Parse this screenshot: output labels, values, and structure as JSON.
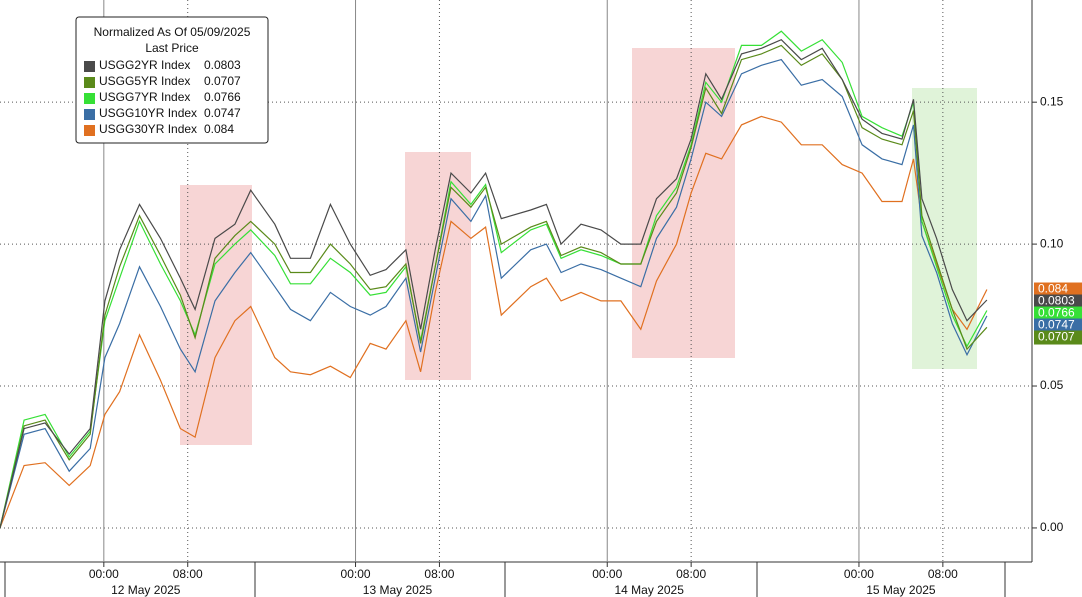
{
  "chart_data": {
    "type": "line",
    "legend": {
      "title": "Normalized As Of 05/09/2025",
      "subtitle": "Last Price"
    },
    "x": [
      -9.9,
      -7.6,
      -5.6,
      -3.3,
      -1.3,
      0.1,
      1.5,
      3.4,
      5.4,
      7.3,
      8.7,
      10.6,
      12.5,
      14.0,
      16.3,
      17.8,
      19.7,
      21.6,
      23.5,
      25.4,
      26.9,
      28.8,
      30.2,
      31.6,
      33.1,
      35.0,
      36.4,
      37.9,
      40.7,
      42.2,
      43.6,
      45.5,
      47.4,
      49.3,
      51.2,
      52.7,
      54.6,
      56.0,
      57.4,
      58.9,
      60.8,
      62.7,
      64.6,
      66.5,
      68.5,
      70.4,
      72.3,
      74.2,
      76.1,
      77.2,
      78.0,
      79.4,
      80.9,
      82.3,
      84.2
    ],
    "series": [
      {
        "name": "USGG2YR Index",
        "color": "#4a4a4a",
        "values": [
          0,
          0.035,
          0.037,
          0.026,
          0.035,
          0.08,
          0.098,
          0.114,
          0.102,
          0.088,
          0.077,
          0.102,
          0.107,
          0.119,
          0.107,
          0.095,
          0.095,
          0.114,
          0.1,
          0.089,
          0.091,
          0.098,
          0.07,
          0.098,
          0.125,
          0.118,
          0.125,
          0.109,
          0.112,
          0.114,
          0.1,
          0.107,
          0.105,
          0.1,
          0.1,
          0.116,
          0.123,
          0.137,
          0.16,
          0.151,
          0.167,
          0.169,
          0.172,
          0.165,
          0.169,
          0.158,
          0.144,
          0.139,
          0.137,
          0.151,
          0.116,
          0.102,
          0.084,
          0.073,
          0.0803
        ]
      },
      {
        "name": "USGG5YR Index",
        "color": "#5a8a1a",
        "values": [
          0,
          0.036,
          0.038,
          0.024,
          0.033,
          0.075,
          0.092,
          0.11,
          0.096,
          0.082,
          0.067,
          0.095,
          0.103,
          0.108,
          0.1,
          0.09,
          0.09,
          0.1,
          0.093,
          0.084,
          0.085,
          0.093,
          0.065,
          0.092,
          0.12,
          0.113,
          0.12,
          0.1,
          0.106,
          0.108,
          0.096,
          0.099,
          0.097,
          0.093,
          0.093,
          0.108,
          0.118,
          0.134,
          0.155,
          0.146,
          0.165,
          0.167,
          0.17,
          0.163,
          0.167,
          0.158,
          0.141,
          0.137,
          0.135,
          0.147,
          0.11,
          0.094,
          0.077,
          0.063,
          0.0707
        ]
      },
      {
        "name": "USGG7YR Index",
        "color": "#36e036",
        "values": [
          0,
          0.038,
          0.04,
          0.025,
          0.034,
          0.073,
          0.088,
          0.108,
          0.093,
          0.08,
          0.068,
          0.093,
          0.1,
          0.105,
          0.096,
          0.086,
          0.086,
          0.095,
          0.09,
          0.082,
          0.083,
          0.092,
          0.066,
          0.092,
          0.122,
          0.114,
          0.121,
          0.097,
          0.105,
          0.107,
          0.095,
          0.098,
          0.096,
          0.093,
          0.093,
          0.11,
          0.12,
          0.135,
          0.157,
          0.15,
          0.17,
          0.17,
          0.175,
          0.168,
          0.172,
          0.164,
          0.145,
          0.141,
          0.138,
          0.15,
          0.108,
          0.092,
          0.075,
          0.064,
          0.0766
        ]
      },
      {
        "name": "USGG10YR Index",
        "color": "#3a6ea5",
        "values": [
          0,
          0.033,
          0.035,
          0.02,
          0.028,
          0.06,
          0.072,
          0.092,
          0.078,
          0.063,
          0.055,
          0.08,
          0.09,
          0.097,
          0.085,
          0.077,
          0.073,
          0.083,
          0.078,
          0.075,
          0.078,
          0.088,
          0.062,
          0.088,
          0.116,
          0.108,
          0.117,
          0.088,
          0.098,
          0.1,
          0.09,
          0.093,
          0.091,
          0.088,
          0.085,
          0.102,
          0.113,
          0.13,
          0.15,
          0.145,
          0.16,
          0.163,
          0.165,
          0.156,
          0.158,
          0.152,
          0.135,
          0.13,
          0.128,
          0.142,
          0.103,
          0.09,
          0.072,
          0.061,
          0.0747
        ]
      },
      {
        "name": "USGG30YR Index",
        "color": "#e07020",
        "values": [
          0,
          0.022,
          0.023,
          0.015,
          0.022,
          0.04,
          0.048,
          0.068,
          0.052,
          0.035,
          0.032,
          0.06,
          0.073,
          0.078,
          0.06,
          0.055,
          0.054,
          0.057,
          0.053,
          0.065,
          0.063,
          0.073,
          0.055,
          0.083,
          0.108,
          0.102,
          0.106,
          0.075,
          0.085,
          0.088,
          0.08,
          0.083,
          0.08,
          0.08,
          0.07,
          0.087,
          0.1,
          0.118,
          0.132,
          0.13,
          0.142,
          0.145,
          0.143,
          0.135,
          0.135,
          0.128,
          0.125,
          0.115,
          0.115,
          0.13,
          0.108,
          0.093,
          0.077,
          0.07,
          0.084
        ]
      }
    ],
    "xlim": [
      -9.9,
      88.5
    ],
    "xticks": [
      {
        "value": 0,
        "label": "00:00"
      },
      {
        "value": 8,
        "label": "08:00"
      },
      {
        "value": 24,
        "label": "00:00"
      },
      {
        "value": 32,
        "label": "08:00"
      },
      {
        "value": 48,
        "label": "00:00"
      },
      {
        "value": 56,
        "label": "08:00"
      },
      {
        "value": 72,
        "label": "00:00"
      },
      {
        "value": 80,
        "label": "08:00"
      }
    ],
    "date_labels": [
      "12 May 2025",
      "13 May 2025",
      "14 May 2025",
      "15 May 2025"
    ],
    "ylim": [
      -0.012,
      0.186
    ],
    "yticks": [
      {
        "value": 0,
        "label": "0.00"
      },
      0.05,
      {
        "value": 0.1,
        "label": "0.10"
      },
      0.15
    ],
    "grid": true
  }
}
